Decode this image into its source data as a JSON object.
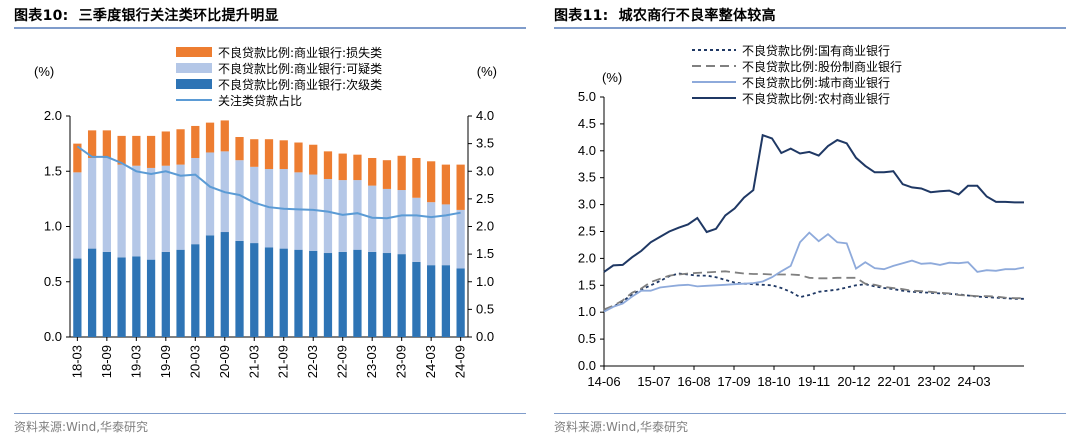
{
  "left": {
    "figure_label": "图表10:",
    "figure_title": "三季度银行关注类环比提升明显",
    "source": "资料来源:Wind,华泰研究"
  },
  "right": {
    "figure_label": "图表11:",
    "figure_title": "城农商行不良率整体较高",
    "source": "资料来源:Wind,华泰研究"
  },
  "chart_data": [
    {
      "type": "bar",
      "stacked": true,
      "left_unit": "(%)",
      "right_unit": "(%)",
      "categories": [
        "18-03",
        "18-06",
        "18-09",
        "18-12",
        "19-03",
        "19-06",
        "19-09",
        "19-12",
        "20-03",
        "20-06",
        "20-09",
        "20-12",
        "21-03",
        "21-06",
        "21-09",
        "21-12",
        "22-03",
        "22-06",
        "22-09",
        "22-12",
        "23-03",
        "23-06",
        "23-09",
        "23-12",
        "24-03",
        "24-06",
        "24-09"
      ],
      "x_tick_labels": [
        "18-03",
        "18-09",
        "19-03",
        "19-09",
        "20-03",
        "20-09",
        "21-03",
        "21-09",
        "22-03",
        "22-09",
        "23-03",
        "23-09",
        "24-03",
        "24-09"
      ],
      "series": [
        {
          "name": "不良贷款比例:商业银行:次级类",
          "axis": "left",
          "color": "#2e74b5",
          "values": [
            0.71,
            0.8,
            0.77,
            0.72,
            0.73,
            0.7,
            0.77,
            0.79,
            0.84,
            0.92,
            0.95,
            0.87,
            0.85,
            0.81,
            0.8,
            0.79,
            0.78,
            0.76,
            0.77,
            0.79,
            0.77,
            0.76,
            0.75,
            0.68,
            0.65,
            0.65,
            0.62
          ]
        },
        {
          "name": "不良贷款比例:商业银行:可疑类",
          "axis": "left",
          "color": "#b4c7e7",
          "values": [
            0.78,
            0.82,
            0.85,
            0.84,
            0.82,
            0.83,
            0.78,
            0.77,
            0.78,
            0.75,
            0.73,
            0.73,
            0.69,
            0.71,
            0.72,
            0.7,
            0.69,
            0.67,
            0.65,
            0.63,
            0.6,
            0.58,
            0.58,
            0.58,
            0.57,
            0.55,
            0.53
          ]
        },
        {
          "name": "不良贷款比例:商业银行:损失类",
          "axis": "left",
          "color": "#ed7d31",
          "values": [
            0.26,
            0.25,
            0.25,
            0.26,
            0.27,
            0.29,
            0.31,
            0.32,
            0.29,
            0.27,
            0.28,
            0.21,
            0.25,
            0.27,
            0.26,
            0.27,
            0.27,
            0.25,
            0.24,
            0.23,
            0.25,
            0.26,
            0.31,
            0.36,
            0.37,
            0.36,
            0.41
          ]
        },
        {
          "name": "关注类贷款占比",
          "axis": "right",
          "type": "line",
          "color": "#5b9bd5",
          "values": [
            3.45,
            3.26,
            3.26,
            3.15,
            3.0,
            2.95,
            3.0,
            2.92,
            2.94,
            2.72,
            2.62,
            2.57,
            2.43,
            2.35,
            2.32,
            2.31,
            2.3,
            2.27,
            2.21,
            2.24,
            2.16,
            2.15,
            2.2,
            2.2,
            2.17,
            2.2,
            2.25
          ]
        }
      ],
      "ylim": [
        0,
        2.0
      ],
      "y_ticks": [
        "0.0",
        "0.5",
        "1.0",
        "1.5",
        "2.0"
      ],
      "y2lim": [
        0,
        4.0
      ],
      "y2_ticks": [
        "0.0",
        "0.5",
        "1.0",
        "1.5",
        "2.0",
        "2.5",
        "3.0",
        "3.5",
        "4.0"
      ],
      "legend_order": [
        "不良贷款比例:商业银行:损失类",
        "不良贷款比例:商业银行:可疑类",
        "不良贷款比例:商业银行:次级类",
        "关注类贷款占比"
      ],
      "legend_position": "top"
    },
    {
      "type": "line",
      "y_unit": "(%)",
      "x_tick_labels": [
        "14-06",
        "15-07",
        "16-08",
        "17-09",
        "18-10",
        "19-11",
        "20-12",
        "22-01",
        "23-02",
        "24-03"
      ],
      "ylim": [
        0,
        5.0
      ],
      "y_ticks": [
        "0.0",
        "0.5",
        "1.0",
        "1.5",
        "2.0",
        "2.5",
        "3.0",
        "3.5",
        "4.0",
        "4.5",
        "5.0"
      ],
      "series": [
        {
          "name": "不良贷款比例:国有商业银行",
          "color": "#1f3864",
          "dash": "dotted",
          "values": [
            1.03,
            1.1,
            1.2,
            1.33,
            1.42,
            1.5,
            1.58,
            1.67,
            1.72,
            1.7,
            1.68,
            1.68,
            1.65,
            1.6,
            1.55,
            1.53,
            1.52,
            1.51,
            1.5,
            1.45,
            1.38,
            1.28,
            1.32,
            1.38,
            1.4,
            1.42,
            1.46,
            1.5,
            1.52,
            1.48,
            1.45,
            1.43,
            1.4,
            1.38,
            1.37,
            1.36,
            1.35,
            1.34,
            1.33,
            1.31,
            1.29,
            1.28,
            1.27,
            1.26,
            1.25,
            1.25
          ]
        },
        {
          "name": "不良贷款比例:股份制商业银行",
          "color": "#808080",
          "dash": "longdash",
          "values": [
            1.05,
            1.12,
            1.22,
            1.36,
            1.44,
            1.56,
            1.62,
            1.68,
            1.7,
            1.72,
            1.73,
            1.74,
            1.75,
            1.76,
            1.74,
            1.72,
            1.71,
            1.71,
            1.7,
            1.7,
            1.7,
            1.69,
            1.64,
            1.63,
            1.63,
            1.64,
            1.64,
            1.64,
            1.53,
            1.51,
            1.47,
            1.45,
            1.43,
            1.4,
            1.39,
            1.38,
            1.36,
            1.35,
            1.32,
            1.31,
            1.3,
            1.3,
            1.29,
            1.27,
            1.26,
            1.26
          ]
        },
        {
          "name": "不良贷款比例:城市商业银行",
          "color": "#8eaadb",
          "dash": "solid",
          "values": [
            1.01,
            1.1,
            1.16,
            1.29,
            1.4,
            1.4,
            1.46,
            1.48,
            1.5,
            1.51,
            1.48,
            1.49,
            1.5,
            1.51,
            1.52,
            1.53,
            1.54,
            1.57,
            1.65,
            1.76,
            1.86,
            2.3,
            2.48,
            2.32,
            2.45,
            2.3,
            2.28,
            1.81,
            1.93,
            1.82,
            1.8,
            1.86,
            1.91,
            1.96,
            1.9,
            1.91,
            1.88,
            1.92,
            1.91,
            1.93,
            1.75,
            1.78,
            1.77,
            1.8,
            1.8,
            1.83
          ]
        },
        {
          "name": "不良贷款比例:农村商业银行",
          "color": "#1f3864",
          "dash": "solid",
          "values": [
            1.75,
            1.87,
            1.88,
            2.02,
            2.14,
            2.3,
            2.4,
            2.5,
            2.57,
            2.63,
            2.75,
            2.49,
            2.55,
            2.8,
            2.93,
            3.13,
            3.27,
            4.29,
            4.23,
            3.96,
            4.04,
            3.95,
            3.98,
            3.91,
            4.09,
            4.2,
            4.14,
            3.87,
            3.72,
            3.6,
            3.6,
            3.62,
            3.38,
            3.32,
            3.3,
            3.23,
            3.25,
            3.26,
            3.19,
            3.35,
            3.35,
            3.15,
            3.05,
            3.05,
            3.04,
            3.04
          ]
        }
      ],
      "legend_order": [
        "不良贷款比例:国有商业银行",
        "不良贷款比例:股份制商业银行",
        "不良贷款比例:城市商业银行",
        "不良贷款比例:农村商业银行"
      ],
      "legend_position": "top"
    }
  ]
}
